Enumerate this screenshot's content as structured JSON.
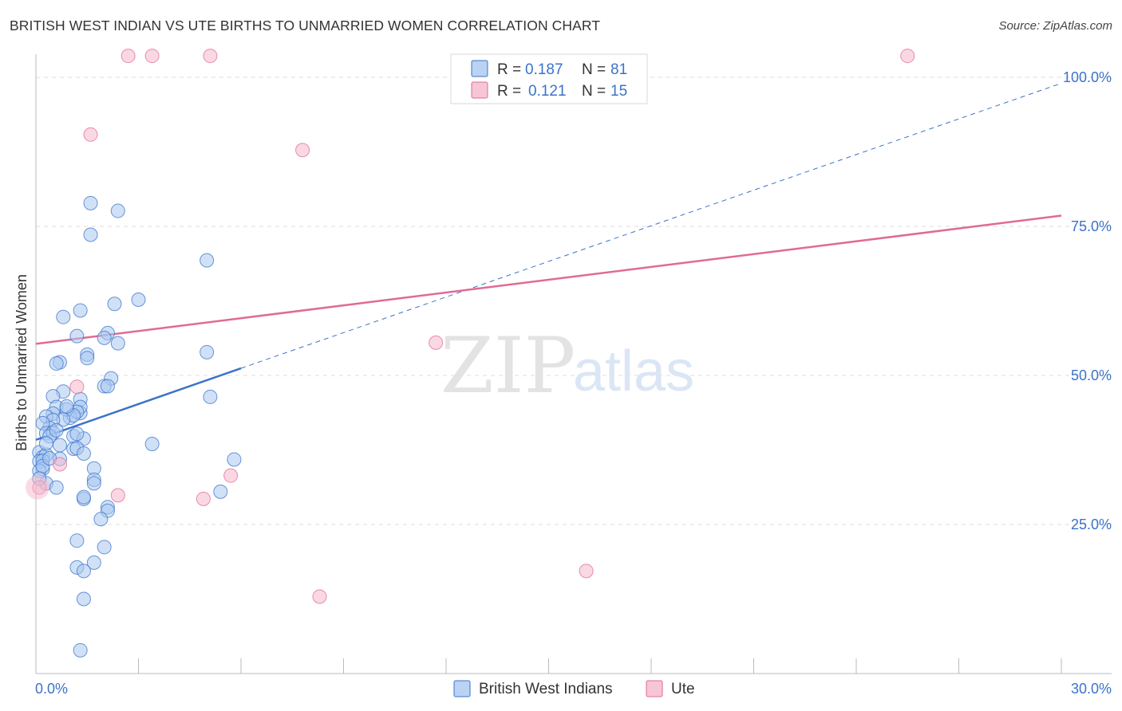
{
  "title": "BRITISH WEST INDIAN VS UTE BIRTHS TO UNMARRIED WOMEN CORRELATION CHART",
  "source": "Source: ZipAtlas.com",
  "watermark": {
    "zip": "ZIP",
    "atlas": "atlas"
  },
  "colors": {
    "blue": "#3b73c9",
    "blue_fill": "#a9c8f0",
    "pink": "#e06a96",
    "pink_fill": "#f5b8cc",
    "grid": "#dddddd"
  },
  "legend": {
    "items": [
      {
        "r_label": "R =",
        "r_value": "0.187",
        "n_label": "N =",
        "n_value": "81"
      },
      {
        "r_label": "R =",
        "r_value": "0.121",
        "n_label": "N =",
        "n_value": "15"
      }
    ]
  },
  "chart_data": {
    "type": "scatter",
    "title": "BRITISH WEST INDIAN VS UTE BIRTHS TO UNMARRIED WOMEN CORRELATION CHART",
    "xlabel": "",
    "ylabel": "Births to Unmarried Women",
    "xlim": [
      0,
      30
    ],
    "ylim": [
      0,
      100
    ],
    "x_tick_labels": [
      "0.0%",
      "30.0%"
    ],
    "y_tick_labels": [
      "25.0%",
      "50.0%",
      "75.0%",
      "100.0%"
    ],
    "y_ticks": [
      25,
      50,
      75,
      100
    ],
    "series": [
      {
        "name": "British West Indians",
        "color": "#3b73c9",
        "r": 0.187,
        "n": 81,
        "trend": {
          "x": [
            0,
            6
          ],
          "y": [
            39.2,
            51.2
          ],
          "extended_to": [
            30,
            99
          ]
        },
        "points": [
          [
            1.6,
            78.9
          ],
          [
            2.4,
            77.6
          ],
          [
            1.6,
            73.6
          ],
          [
            5.0,
            69.3
          ],
          [
            3.0,
            62.7
          ],
          [
            2.3,
            62.0
          ],
          [
            1.3,
            60.9
          ],
          [
            0.8,
            59.8
          ],
          [
            2.1,
            57.1
          ],
          [
            1.2,
            56.6
          ],
          [
            2.0,
            56.3
          ],
          [
            2.4,
            55.4
          ],
          [
            5.0,
            53.9
          ],
          [
            1.5,
            53.5
          ],
          [
            1.5,
            52.9
          ],
          [
            0.7,
            52.2
          ],
          [
            0.6,
            52.0
          ],
          [
            2.2,
            49.5
          ],
          [
            2.0,
            48.2
          ],
          [
            2.1,
            48.2
          ],
          [
            0.8,
            47.3
          ],
          [
            0.5,
            46.5
          ],
          [
            1.3,
            46.0
          ],
          [
            0.6,
            44.7
          ],
          [
            5.1,
            46.4
          ],
          [
            1.3,
            43.7
          ],
          [
            1.0,
            42.9
          ],
          [
            1.3,
            44.7
          ],
          [
            1.2,
            43.9
          ],
          [
            0.9,
            44.3
          ],
          [
            0.5,
            43.6
          ],
          [
            1.1,
            43.3
          ],
          [
            0.3,
            43.1
          ],
          [
            0.8,
            42.6
          ],
          [
            0.5,
            42.5
          ],
          [
            0.4,
            41.2
          ],
          [
            0.2,
            42.0
          ],
          [
            0.3,
            40.3
          ],
          [
            0.5,
            40.4
          ],
          [
            0.4,
            39.8
          ],
          [
            1.1,
            39.8
          ],
          [
            1.4,
            39.4
          ],
          [
            0.7,
            38.3
          ],
          [
            3.4,
            38.5
          ],
          [
            1.1,
            37.7
          ],
          [
            1.2,
            37.8
          ],
          [
            0.1,
            37.1
          ],
          [
            0.2,
            36.3
          ],
          [
            1.4,
            36.9
          ],
          [
            0.7,
            36.0
          ],
          [
            0.3,
            36.7
          ],
          [
            0.1,
            35.6
          ],
          [
            0.2,
            35.7
          ],
          [
            1.7,
            34.4
          ],
          [
            0.2,
            34.3
          ],
          [
            5.8,
            35.9
          ],
          [
            1.7,
            32.5
          ],
          [
            1.7,
            31.9
          ],
          [
            0.3,
            31.9
          ],
          [
            0.6,
            31.2
          ],
          [
            5.4,
            30.5
          ],
          [
            1.4,
            29.3
          ],
          [
            1.4,
            29.6
          ],
          [
            2.1,
            27.9
          ],
          [
            2.1,
            27.3
          ],
          [
            1.9,
            25.9
          ],
          [
            1.2,
            22.3
          ],
          [
            2.0,
            21.2
          ],
          [
            1.7,
            18.6
          ],
          [
            1.2,
            17.8
          ],
          [
            1.4,
            17.2
          ],
          [
            1.4,
            12.5
          ],
          [
            1.3,
            3.9
          ],
          [
            0.1,
            34.0
          ],
          [
            0.2,
            34.8
          ],
          [
            0.4,
            36.1
          ],
          [
            0.6,
            40.8
          ],
          [
            1.2,
            40.2
          ],
          [
            0.1,
            32.7
          ],
          [
            0.9,
            44.8
          ],
          [
            0.3,
            38.6
          ]
        ]
      },
      {
        "name": "Ute",
        "color": "#e06a96",
        "r": 0.121,
        "n": 15,
        "trend": {
          "x": [
            0,
            30
          ],
          "y": [
            55.3,
            76.8
          ]
        },
        "points": [
          [
            2.7,
            103.6
          ],
          [
            3.4,
            103.6
          ],
          [
            5.1,
            103.6
          ],
          [
            25.5,
            103.6
          ],
          [
            1.6,
            90.4
          ],
          [
            7.8,
            87.8
          ],
          [
            11.7,
            55.5
          ],
          [
            1.2,
            48.1
          ],
          [
            0.7,
            35.1
          ],
          [
            2.4,
            29.9
          ],
          [
            4.9,
            29.3
          ],
          [
            5.7,
            33.2
          ],
          [
            16.1,
            17.2
          ],
          [
            8.3,
            12.9
          ],
          [
            0.1,
            31.2
          ]
        ]
      }
    ]
  },
  "bottom_legend": [
    "British West Indians",
    "Ute"
  ]
}
